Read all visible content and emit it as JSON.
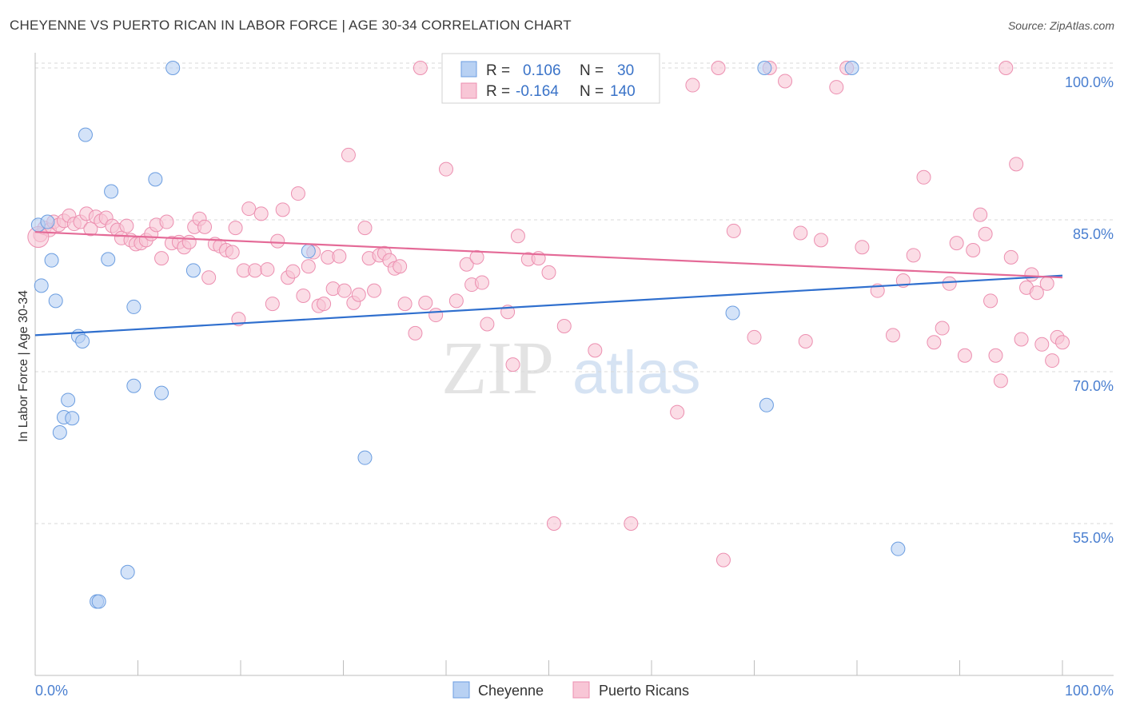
{
  "header": {
    "title": "CHEYENNE VS PUERTO RICAN IN LABOR FORCE | AGE 30-34 CORRELATION CHART",
    "source": "Source: ZipAtlas.com"
  },
  "legend_box": {
    "rows": [
      {
        "r_label": "R =",
        "r_value": "0.106",
        "n_label": "N =",
        "n_value": "30"
      },
      {
        "r_label": "R =",
        "r_value": "-0.164",
        "n_label": "N =",
        "n_value": "140"
      }
    ]
  },
  "bottom_legend": {
    "items": [
      "Cheyenne",
      "Puerto Ricans"
    ]
  },
  "watermark": {
    "zip": "ZIP",
    "atlas": "atlas"
  },
  "colors": {
    "cheyenne_fill": "#b8d1f3",
    "cheyenne_stroke": "#6b9de0",
    "cheyenne_line": "#2f6fce",
    "pr_fill": "#f8c6d6",
    "pr_stroke": "#ec8fb0",
    "pr_line": "#e46a97",
    "grid": "#d8d8d8",
    "tick_text": "#4a7fd0"
  },
  "chart_data": {
    "type": "scatter",
    "title": "CHEYENNE VS PUERTO RICAN IN LABOR FORCE | AGE 30-34 CORRELATION CHART",
    "xlabel": "",
    "ylabel": "In Labor Force | Age 30-34",
    "xlim": [
      0,
      100
    ],
    "ylim": [
      40,
      101.5
    ],
    "x_tick_labels": [
      "0.0%",
      "100.0%"
    ],
    "y_ticks": [
      55,
      70,
      85,
      100
    ],
    "y_tick_labels": [
      "55.0%",
      "70.0%",
      "85.0%",
      "100.0%"
    ],
    "grid": true,
    "legend_position": "top-center",
    "series": [
      {
        "name": "Cheyenne",
        "r": 0.106,
        "n": 30,
        "trend": [
          [
            0,
            73.6
          ],
          [
            100,
            79.5
          ]
        ],
        "points": [
          [
            0.3,
            84.5
          ],
          [
            0.6,
            78.5
          ],
          [
            1.2,
            84.8
          ],
          [
            1.6,
            81.0
          ],
          [
            2.0,
            77.0
          ],
          [
            4.2,
            73.5
          ],
          [
            4.6,
            73.0
          ],
          [
            3.2,
            67.2
          ],
          [
            2.8,
            65.5
          ],
          [
            3.6,
            65.4
          ],
          [
            2.4,
            64.0
          ],
          [
            4.9,
            93.4
          ],
          [
            7.4,
            87.8
          ],
          [
            7.1,
            81.1
          ],
          [
            9.6,
            76.4
          ],
          [
            9.6,
            68.6
          ],
          [
            12.3,
            67.9
          ],
          [
            11.7,
            89.0
          ],
          [
            13.4,
            100.0
          ],
          [
            15.4,
            80.0
          ],
          [
            6.0,
            47.3
          ],
          [
            6.2,
            47.3
          ],
          [
            9.0,
            50.2
          ],
          [
            26.6,
            81.9
          ],
          [
            32.1,
            61.5
          ],
          [
            67.9,
            75.8
          ],
          [
            71.0,
            100.0
          ],
          [
            71.2,
            66.7
          ],
          [
            79.5,
            100.0
          ],
          [
            84.0,
            52.5
          ]
        ]
      },
      {
        "name": "Puerto Ricans",
        "r": -0.164,
        "n": 140,
        "trend": [
          [
            0,
            83.8
          ],
          [
            100,
            79.3
          ]
        ],
        "points": [
          [
            0.5,
            83.5
          ],
          [
            0.9,
            84.2
          ],
          [
            1.4,
            84.0
          ],
          [
            1.8,
            84.8
          ],
          [
            2.3,
            84.5
          ],
          [
            2.8,
            84.9
          ],
          [
            3.3,
            85.4
          ],
          [
            3.8,
            84.6
          ],
          [
            4.4,
            84.8
          ],
          [
            5.0,
            85.6
          ],
          [
            5.4,
            84.1
          ],
          [
            5.9,
            85.3
          ],
          [
            6.4,
            84.9
          ],
          [
            6.9,
            85.2
          ],
          [
            7.5,
            84.4
          ],
          [
            8.0,
            84.0
          ],
          [
            8.4,
            83.2
          ],
          [
            8.9,
            84.4
          ],
          [
            9.3,
            83.0
          ],
          [
            9.8,
            82.6
          ],
          [
            10.3,
            82.7
          ],
          [
            10.8,
            83.0
          ],
          [
            11.3,
            83.6
          ],
          [
            11.8,
            84.5
          ],
          [
            12.3,
            81.2
          ],
          [
            12.8,
            84.8
          ],
          [
            13.3,
            82.7
          ],
          [
            14.0,
            82.8
          ],
          [
            14.5,
            82.3
          ],
          [
            15.0,
            82.8
          ],
          [
            15.5,
            84.3
          ],
          [
            16.0,
            85.1
          ],
          [
            16.5,
            84.3
          ],
          [
            16.9,
            79.3
          ],
          [
            17.5,
            82.6
          ],
          [
            18.0,
            82.4
          ],
          [
            18.6,
            82.0
          ],
          [
            19.2,
            81.8
          ],
          [
            19.5,
            84.2
          ],
          [
            19.8,
            75.2
          ],
          [
            20.3,
            80.0
          ],
          [
            20.8,
            86.1
          ],
          [
            21.4,
            80.0
          ],
          [
            22.0,
            85.6
          ],
          [
            22.6,
            80.1
          ],
          [
            23.1,
            76.7
          ],
          [
            23.6,
            82.9
          ],
          [
            24.1,
            86.0
          ],
          [
            24.6,
            79.3
          ],
          [
            25.1,
            79.9
          ],
          [
            25.6,
            87.6
          ],
          [
            26.1,
            77.5
          ],
          [
            26.6,
            80.4
          ],
          [
            27.1,
            81.8
          ],
          [
            27.6,
            76.5
          ],
          [
            28.1,
            76.7
          ],
          [
            28.5,
            81.3
          ],
          [
            29.0,
            78.2
          ],
          [
            29.6,
            81.4
          ],
          [
            30.1,
            78.0
          ],
          [
            30.5,
            91.4
          ],
          [
            31.0,
            76.8
          ],
          [
            31.5,
            77.6
          ],
          [
            32.1,
            84.2
          ],
          [
            32.5,
            81.2
          ],
          [
            33.0,
            78.0
          ],
          [
            33.5,
            81.5
          ],
          [
            34.0,
            81.7
          ],
          [
            34.5,
            81.0
          ],
          [
            35.0,
            80.2
          ],
          [
            35.5,
            80.4
          ],
          [
            36.0,
            76.7
          ],
          [
            37.0,
            73.8
          ],
          [
            38.0,
            76.8
          ],
          [
            39.0,
            75.6
          ],
          [
            40.0,
            90.0
          ],
          [
            41.0,
            77.0
          ],
          [
            42.0,
            80.6
          ],
          [
            42.5,
            78.6
          ],
          [
            43.0,
            81.3
          ],
          [
            43.5,
            78.8
          ],
          [
            44.0,
            74.7
          ],
          [
            46.0,
            75.9
          ],
          [
            46.5,
            70.7
          ],
          [
            47.0,
            83.4
          ],
          [
            48.0,
            81.1
          ],
          [
            49.0,
            81.2
          ],
          [
            50.0,
            79.8
          ],
          [
            47.5,
            100.0
          ],
          [
            37.5,
            100.0
          ],
          [
            49.5,
            100.0
          ],
          [
            58.5,
            100.0
          ],
          [
            50.5,
            55.0
          ],
          [
            51.5,
            74.5
          ],
          [
            54.5,
            72.1
          ],
          [
            57.0,
            100.0
          ],
          [
            58.0,
            55.0
          ],
          [
            59.0,
            100.0
          ],
          [
            62.5,
            66.0
          ],
          [
            64.0,
            98.3
          ],
          [
            66.5,
            100.0
          ],
          [
            67.0,
            51.4
          ],
          [
            68.0,
            83.9
          ],
          [
            70.0,
            73.4
          ],
          [
            71.5,
            100.0
          ],
          [
            73.0,
            98.7
          ],
          [
            74.5,
            83.7
          ],
          [
            75.0,
            73.0
          ],
          [
            76.5,
            83.0
          ],
          [
            78.0,
            98.1
          ],
          [
            79.0,
            100.0
          ],
          [
            80.5,
            82.3
          ],
          [
            82.0,
            78.0
          ],
          [
            83.5,
            73.6
          ],
          [
            84.5,
            79.0
          ],
          [
            85.5,
            81.5
          ],
          [
            86.5,
            89.2
          ],
          [
            87.5,
            72.9
          ],
          [
            88.3,
            74.3
          ],
          [
            89.0,
            78.7
          ],
          [
            89.7,
            82.7
          ],
          [
            90.5,
            71.6
          ],
          [
            91.3,
            82.0
          ],
          [
            92.0,
            85.5
          ],
          [
            92.5,
            83.6
          ],
          [
            93.0,
            77.0
          ],
          [
            93.5,
            71.6
          ],
          [
            94.0,
            69.1
          ],
          [
            94.5,
            100.0
          ],
          [
            95.0,
            81.3
          ],
          [
            95.5,
            90.5
          ],
          [
            96.0,
            73.2
          ],
          [
            96.5,
            78.3
          ],
          [
            97.0,
            79.6
          ],
          [
            97.5,
            77.8
          ],
          [
            98.0,
            72.7
          ],
          [
            98.5,
            78.7
          ],
          [
            99.0,
            71.1
          ],
          [
            99.5,
            73.4
          ],
          [
            100.0,
            72.9
          ]
        ]
      }
    ]
  }
}
